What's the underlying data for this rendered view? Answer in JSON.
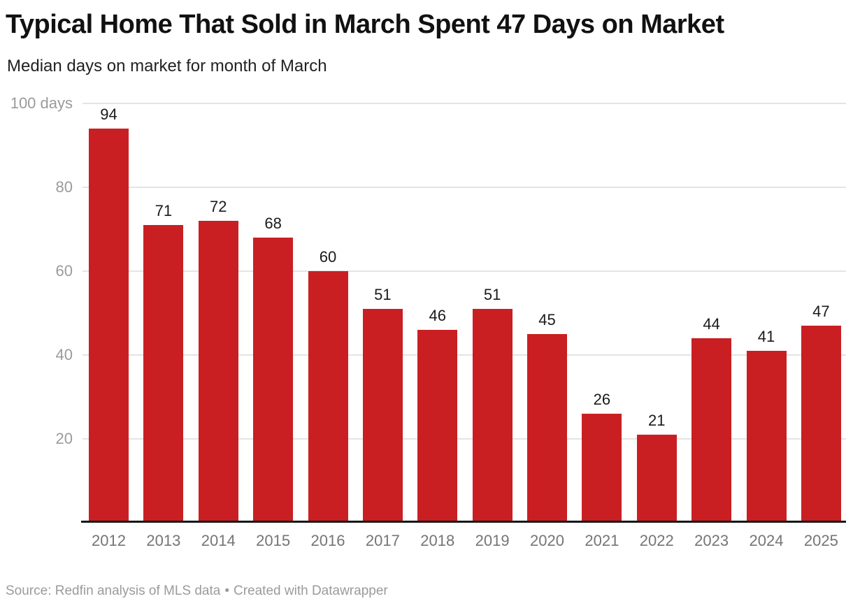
{
  "header": {
    "title": "Typical Home That Sold in March Spent 47 Days on Market",
    "subtitle": "Median days on market for month of March"
  },
  "chart_data": {
    "type": "bar",
    "title": "Typical Home That Sold in March Spent 47 Days on Market",
    "subtitle": "Median days on market for month of March",
    "categories": [
      "2012",
      "2013",
      "2014",
      "2015",
      "2016",
      "2017",
      "2018",
      "2019",
      "2020",
      "2021",
      "2022",
      "2023",
      "2024",
      "2025"
    ],
    "values": [
      94,
      71,
      72,
      68,
      60,
      51,
      46,
      51,
      45,
      26,
      21,
      44,
      41,
      47
    ],
    "xlabel": "",
    "ylabel": "days",
    "ylim": [
      0,
      100
    ],
    "yticks": [
      20,
      40,
      60,
      80,
      100
    ],
    "ytick_labels": [
      "20",
      "40",
      "60",
      "80",
      "100 days"
    ],
    "grid": true,
    "legend": false,
    "value_labels": true,
    "bar_color": "#c91f23"
  },
  "footer": {
    "source": "Source: Redfin analysis of MLS data",
    "separator": "•",
    "credit": "Created with Datawrapper"
  },
  "colors": {
    "bar": "#c91f23",
    "grid": "#e4e4e4",
    "baseline": "#161616",
    "title-text": "#111111",
    "subtitle-text": "#222222",
    "value-text": "#1a1a1a",
    "ytick-text": "#9b9b9b",
    "xtick-text": "#767575",
    "source-text": "#9b9b9b"
  }
}
